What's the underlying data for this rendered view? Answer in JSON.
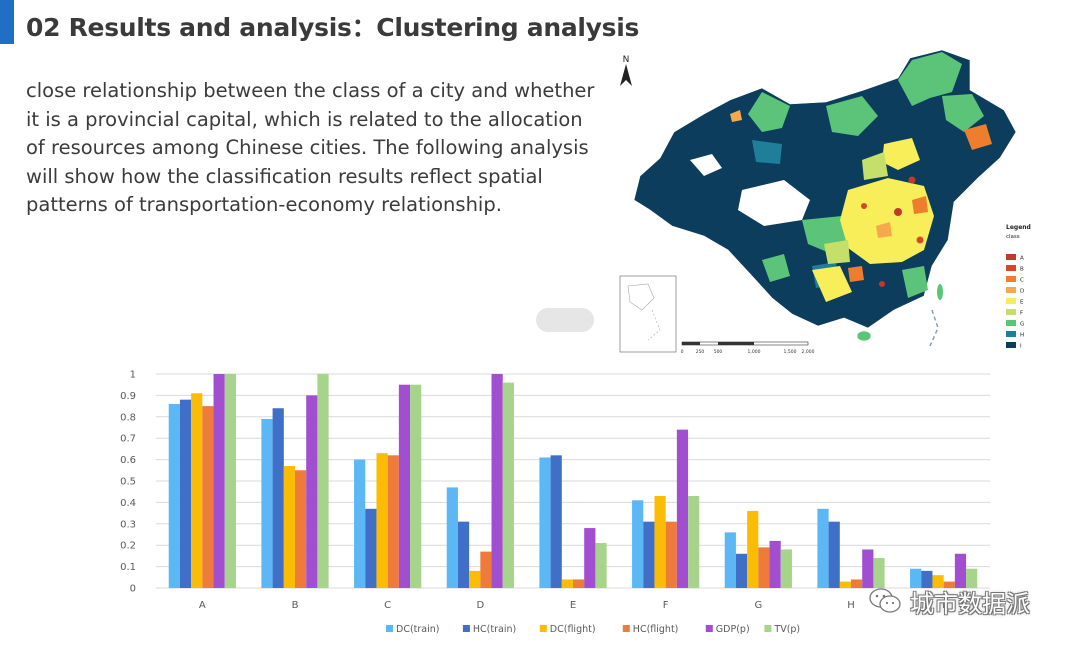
{
  "slide": {
    "title": "02 Results and analysis：Clustering analysis",
    "accent_color": "#1f6fc5",
    "body_lines": [
      "close relationship between the class of a city and whether",
      "it is a provincial capital, which is related to the allocation",
      "of resources among Chinese cities. The following analysis",
      "will show how the classification results reflect spatial",
      "patterns of transportation-economy relationship."
    ]
  },
  "map": {
    "north_label": "N",
    "legend_title": "Legend",
    "legend_subtitle": "class",
    "classes": [
      {
        "label": "A",
        "color": "#c0392b"
      },
      {
        "label": "B",
        "color": "#d9472b"
      },
      {
        "label": "C",
        "color": "#ee7d2c"
      },
      {
        "label": "D",
        "color": "#f6a94a"
      },
      {
        "label": "E",
        "color": "#f7ee5a"
      },
      {
        "label": "F",
        "color": "#c5e06a"
      },
      {
        "label": "G",
        "color": "#5cc479"
      },
      {
        "label": "H",
        "color": "#1f7e9a"
      },
      {
        "label": "I",
        "color": "#0d3d5c"
      }
    ],
    "scale_labels": [
      "0",
      "250",
      "500",
      "1,000",
      "1,500",
      "2,000"
    ]
  },
  "watermark": {
    "text": "城市数据派",
    "icon": "wechat-icon"
  },
  "chart_data": {
    "type": "bar",
    "categories": [
      "A",
      "B",
      "C",
      "D",
      "E",
      "F",
      "G",
      "H",
      "I"
    ],
    "ylim": [
      0,
      1
    ],
    "yticks": [
      "0",
      "0.1",
      "0.2",
      "0.3",
      "0.4",
      "0.5",
      "0.6",
      "0.7",
      "0.8",
      "0.9",
      "1"
    ],
    "grid": true,
    "legend_position": "bottom",
    "series": [
      {
        "name": "DC(train)",
        "color": "#5bb8f5",
        "values": [
          0.86,
          0.79,
          0.6,
          0.47,
          0.61,
          0.41,
          0.26,
          0.37,
          0.09
        ]
      },
      {
        "name": "HC(train)",
        "color": "#3f6fc6",
        "values": [
          0.88,
          0.84,
          0.37,
          0.31,
          0.62,
          0.31,
          0.16,
          0.31,
          0.08
        ]
      },
      {
        "name": "DC(flight)",
        "color": "#fbbc05",
        "values": [
          0.91,
          0.57,
          0.63,
          0.08,
          0.04,
          0.43,
          0.36,
          0.03,
          0.06
        ]
      },
      {
        "name": "HC(flight)",
        "color": "#ef7b3a",
        "values": [
          0.85,
          0.55,
          0.62,
          0.17,
          0.04,
          0.31,
          0.19,
          0.04,
          0.03
        ]
      },
      {
        "name": "GDP(p)",
        "color": "#a14fd0",
        "values": [
          1.0,
          0.9,
          0.95,
          1.0,
          0.28,
          0.74,
          0.22,
          0.18,
          0.16
        ]
      },
      {
        "name": "TV(p)",
        "color": "#a6d48a",
        "values": [
          1.0,
          1.0,
          0.95,
          0.96,
          0.21,
          0.43,
          0.18,
          0.14,
          0.09
        ]
      }
    ]
  }
}
